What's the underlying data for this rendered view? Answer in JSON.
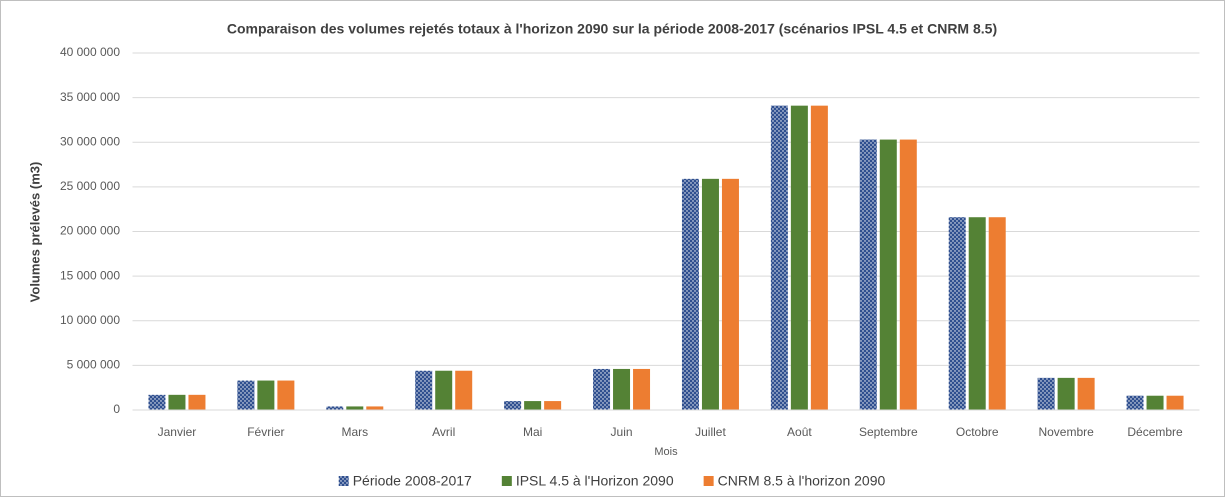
{
  "chart_data": {
    "type": "bar",
    "title": "Comparaison des volumes rejetés totaux à l'horizon 2090 sur la période 2008-2017 (scénarios IPSL 4.5 et CNRM 8.5)",
    "x_label": "Mois",
    "y_label": "Volumes prélevés (m3)",
    "categories": [
      "Janvier",
      "Février",
      "Mars",
      "Avril",
      "Mai",
      "Juin",
      "Juillet",
      "Août",
      "Septembre",
      "Octobre",
      "Novembre",
      "Décembre"
    ],
    "series": [
      {
        "name": "Période 2008-2017",
        "color": "#2f4f8f",
        "pattern": "dots",
        "values": [
          1700000,
          3300000,
          400000,
          4400000,
          1000000,
          4600000,
          25900000,
          34100000,
          30300000,
          21600000,
          3600000,
          1600000
        ]
      },
      {
        "name": "IPSL 4.5 à l'Horizon 2090",
        "color": "#548235",
        "values": [
          1700000,
          3300000,
          400000,
          4400000,
          1000000,
          4600000,
          25900000,
          34100000,
          30300000,
          21600000,
          3600000,
          1600000
        ]
      },
      {
        "name": "CNRM 8.5 à l'horizon 2090",
        "color": "#ed7d31",
        "values": [
          1700000,
          3300000,
          400000,
          4400000,
          1000000,
          4600000,
          25900000,
          34100000,
          30300000,
          21600000,
          3600000,
          1600000
        ]
      }
    ],
    "ylim": [
      0,
      40000000
    ],
    "yticks": [
      0,
      {
        "value": 5000000,
        "label": "5 000 000"
      },
      {
        "value": 10000000,
        "label": "10 000 000"
      },
      {
        "value": 15000000,
        "label": "15 000 000"
      },
      {
        "value": 20000000,
        "label": "20 000 000"
      },
      {
        "value": 25000000,
        "label": "25 000 000"
      },
      {
        "value": 30000000,
        "label": "30 000 000"
      },
      {
        "value": 35000000,
        "label": "35 000 000"
      },
      {
        "value": 40000000,
        "label": "40 000 000"
      }
    ],
    "grid": true,
    "legend": "bottom"
  }
}
